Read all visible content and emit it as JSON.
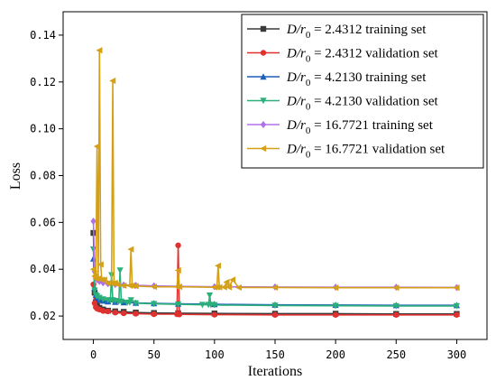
{
  "chart_data": {
    "type": "line",
    "title": "",
    "xlabel": "Iterations",
    "ylabel": "Loss",
    "xlim": [
      -25,
      325
    ],
    "ylim": [
      0.01,
      0.15
    ],
    "xticks": [
      0,
      50,
      100,
      150,
      200,
      250,
      300
    ],
    "xtick_labels": [
      "0",
      "50",
      "100",
      "150",
      "200",
      "250",
      "300"
    ],
    "yticks": [
      0.02,
      0.04,
      0.06,
      0.08,
      0.1,
      0.12,
      0.14
    ],
    "ytick_labels": [
      "0.02",
      "0.04",
      "0.06",
      "0.08",
      "0.10",
      "0.12",
      "0.14"
    ],
    "grid": false,
    "legend_position": "top-right",
    "series": [
      {
        "name": "D/r0 = 2.4312 training set",
        "legend": {
          "italic": "D/r",
          "sub": "0",
          "rest": " = 2.4312 training set"
        },
        "color": "#3a3a3a",
        "marker": "square",
        "x": [
          0,
          1,
          2,
          3,
          5,
          8,
          12,
          18,
          25,
          35,
          50,
          70,
          100,
          150,
          200,
          250,
          300
        ],
        "y": [
          0.0555,
          0.03,
          0.026,
          0.0245,
          0.0235,
          0.0228,
          0.0223,
          0.022,
          0.0218,
          0.0215,
          0.0213,
          0.0212,
          0.0211,
          0.021,
          0.021,
          0.0209,
          0.0209
        ]
      },
      {
        "name": "D/r0 = 2.4312 validation set",
        "legend": {
          "italic": "D/r",
          "sub": "0",
          "rest": " = 2.4312 validation set"
        },
        "color": "#e03030",
        "marker": "circle",
        "x": [
          0,
          1,
          2,
          3,
          5,
          8,
          12,
          18,
          25,
          35,
          50,
          69,
          70,
          71,
          100,
          150,
          200,
          250,
          300
        ],
        "y": [
          0.0335,
          0.0255,
          0.0238,
          0.0232,
          0.0228,
          0.0222,
          0.022,
          0.0215,
          0.0212,
          0.021,
          0.0208,
          0.0208,
          0.0502,
          0.0207,
          0.0206,
          0.0205,
          0.0205,
          0.0205,
          0.0205
        ]
      },
      {
        "name": "D/r0 = 4.2130 training set",
        "legend": {
          "italic": "D/r",
          "sub": "0",
          "rest": " = 4.2130 training set"
        },
        "color": "#1c5fb8",
        "marker": "triangle-up",
        "x": [
          0,
          1,
          2,
          3,
          5,
          8,
          12,
          18,
          25,
          35,
          50,
          70,
          100,
          150,
          200,
          250,
          300
        ],
        "y": [
          0.0445,
          0.032,
          0.029,
          0.028,
          0.027,
          0.0265,
          0.0262,
          0.026,
          0.0258,
          0.0256,
          0.0254,
          0.0252,
          0.025,
          0.0248,
          0.0247,
          0.0246,
          0.0246
        ]
      },
      {
        "name": "D/r0 = 4.2130 validation set",
        "legend": {
          "italic": "D/r",
          "sub": "0",
          "rest": " = 4.2130 validation set"
        },
        "color": "#2bb07a",
        "marker": "triangle-down",
        "x": [
          0,
          1,
          2,
          3,
          5,
          8,
          12,
          14,
          15,
          16,
          18,
          21,
          22,
          23,
          28,
          30,
          31,
          35,
          50,
          70,
          90,
          95,
          96,
          97,
          100,
          150,
          200,
          250,
          300
        ],
        "y": [
          0.0485,
          0.031,
          0.029,
          0.0285,
          0.0278,
          0.0272,
          0.0268,
          0.0268,
          0.0375,
          0.0268,
          0.0265,
          0.0262,
          0.0395,
          0.0262,
          0.0258,
          0.0258,
          0.0268,
          0.0255,
          0.0252,
          0.025,
          0.0248,
          0.0248,
          0.0288,
          0.0248,
          0.0247,
          0.0245,
          0.0244,
          0.0243,
          0.0243
        ]
      },
      {
        "name": "D/r0 = 16.7721 training set",
        "legend": {
          "italic": "D/r",
          "sub": "0",
          "rest": " = 16.7721 training set"
        },
        "color": "#b070e8",
        "marker": "diamond",
        "x": [
          0,
          1,
          2,
          3,
          5,
          8,
          12,
          18,
          25,
          35,
          50,
          70,
          100,
          150,
          200,
          250,
          300
        ],
        "y": [
          0.0605,
          0.039,
          0.0365,
          0.0355,
          0.0348,
          0.0342,
          0.0338,
          0.0335,
          0.0333,
          0.0331,
          0.0329,
          0.0327,
          0.0325,
          0.0324,
          0.0323,
          0.0323,
          0.0322
        ]
      },
      {
        "name": "D/r0 = 16.7721 validation set",
        "legend": {
          "italic": "D/r",
          "sub": "0",
          "rest": " = 16.7721 validation set"
        },
        "color": "#d4a017",
        "marker": "triangle-left",
        "x": [
          0,
          1,
          2,
          3,
          4,
          5,
          6,
          7,
          9,
          12,
          15,
          16,
          17,
          18,
          20,
          25,
          30,
          31,
          32,
          35,
          50,
          69,
          70,
          71,
          100,
          102,
          103,
          104,
          108,
          110,
          112,
          115,
          120,
          150,
          200,
          250,
          300
        ],
        "y": [
          0.04,
          0.037,
          0.036,
          0.0925,
          0.036,
          0.1335,
          0.042,
          0.0355,
          0.0355,
          0.034,
          0.034,
          0.1205,
          0.034,
          0.034,
          0.0335,
          0.033,
          0.033,
          0.0485,
          0.033,
          0.0328,
          0.0325,
          0.0325,
          0.0395,
          0.0325,
          0.0323,
          0.0323,
          0.0415,
          0.0323,
          0.0323,
          0.0345,
          0.0323,
          0.0355,
          0.0322,
          0.0322,
          0.0321,
          0.0321,
          0.0321
        ]
      }
    ]
  }
}
